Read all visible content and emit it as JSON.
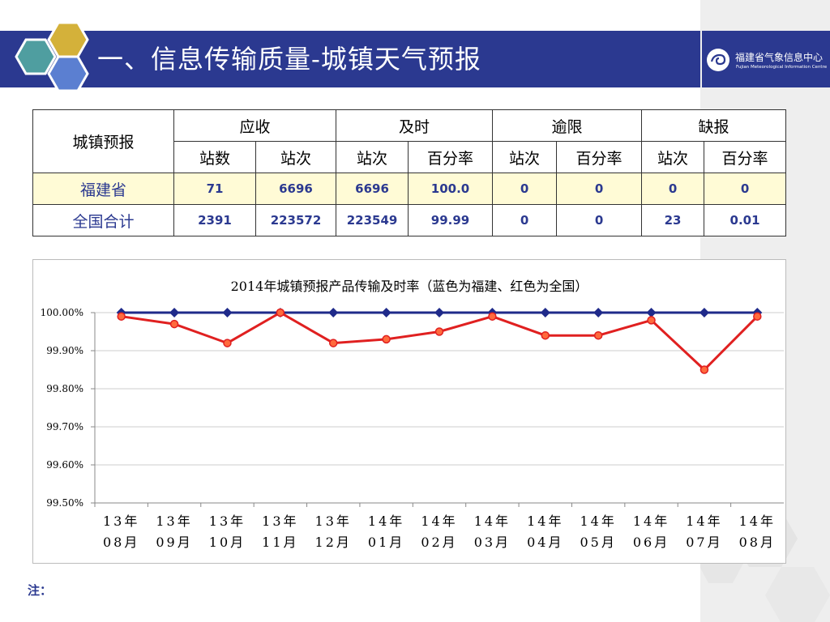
{
  "header": {
    "title": "一、信息传输质量-城镇天气预报",
    "logo_cn": "福建省气象信息中心",
    "logo_en": "Fujian Meteorological Information Centre"
  },
  "table": {
    "corner_label": "城镇预报",
    "group_headers": [
      "应收",
      "及时",
      "逾限",
      "缺报"
    ],
    "sub_headers": [
      "站数",
      "站次",
      "站次",
      "百分率",
      "站次",
      "百分率",
      "站次",
      "百分率"
    ],
    "rows": [
      {
        "label": "福建省",
        "cells": [
          "71",
          "6696",
          "6696",
          "100.0",
          "0",
          "0",
          "0",
          "0"
        ]
      },
      {
        "label": "全国合计",
        "cells": [
          "2391",
          "223572",
          "223549",
          "99.99",
          "0",
          "0",
          "23",
          "0.01"
        ]
      }
    ]
  },
  "chart_data": {
    "type": "line",
    "title": "2014年城镇预报产品传输及时率（蓝色为福建、红色为全国）",
    "categories_line1": [
      "13年",
      "13年",
      "13年",
      "13年",
      "13年",
      "14年",
      "14年",
      "14年",
      "14年",
      "14年",
      "14年",
      "14年",
      "14年"
    ],
    "categories_line2": [
      "08月",
      "09月",
      "10月",
      "11月",
      "12月",
      "01月",
      "02月",
      "03月",
      "04月",
      "05月",
      "06月",
      "07月",
      "08月"
    ],
    "y_ticks": [
      "100.00%",
      "99.90%",
      "99.80%",
      "99.70%",
      "99.60%",
      "99.50%"
    ],
    "ylim": [
      99.5,
      100.0
    ],
    "grid": true,
    "series": [
      {
        "color": "#1f2a8a",
        "marker": "diamond",
        "values": [
          100.0,
          100.0,
          100.0,
          100.0,
          100.0,
          100.0,
          100.0,
          100.0,
          100.0,
          100.0,
          100.0,
          100.0,
          100.0
        ]
      },
      {
        "color": "#e02020",
        "marker": "circle",
        "values": [
          99.99,
          99.97,
          99.92,
          100.0,
          99.92,
          99.93,
          99.95,
          99.99,
          99.94,
          99.94,
          99.98,
          99.85,
          99.99
        ]
      }
    ]
  },
  "note": "注：",
  "colors": {
    "brand": "#2b3990",
    "fujian_series": "#1f2a8a",
    "national_series": "#e02020",
    "row_highlight": "#fffbd6"
  }
}
